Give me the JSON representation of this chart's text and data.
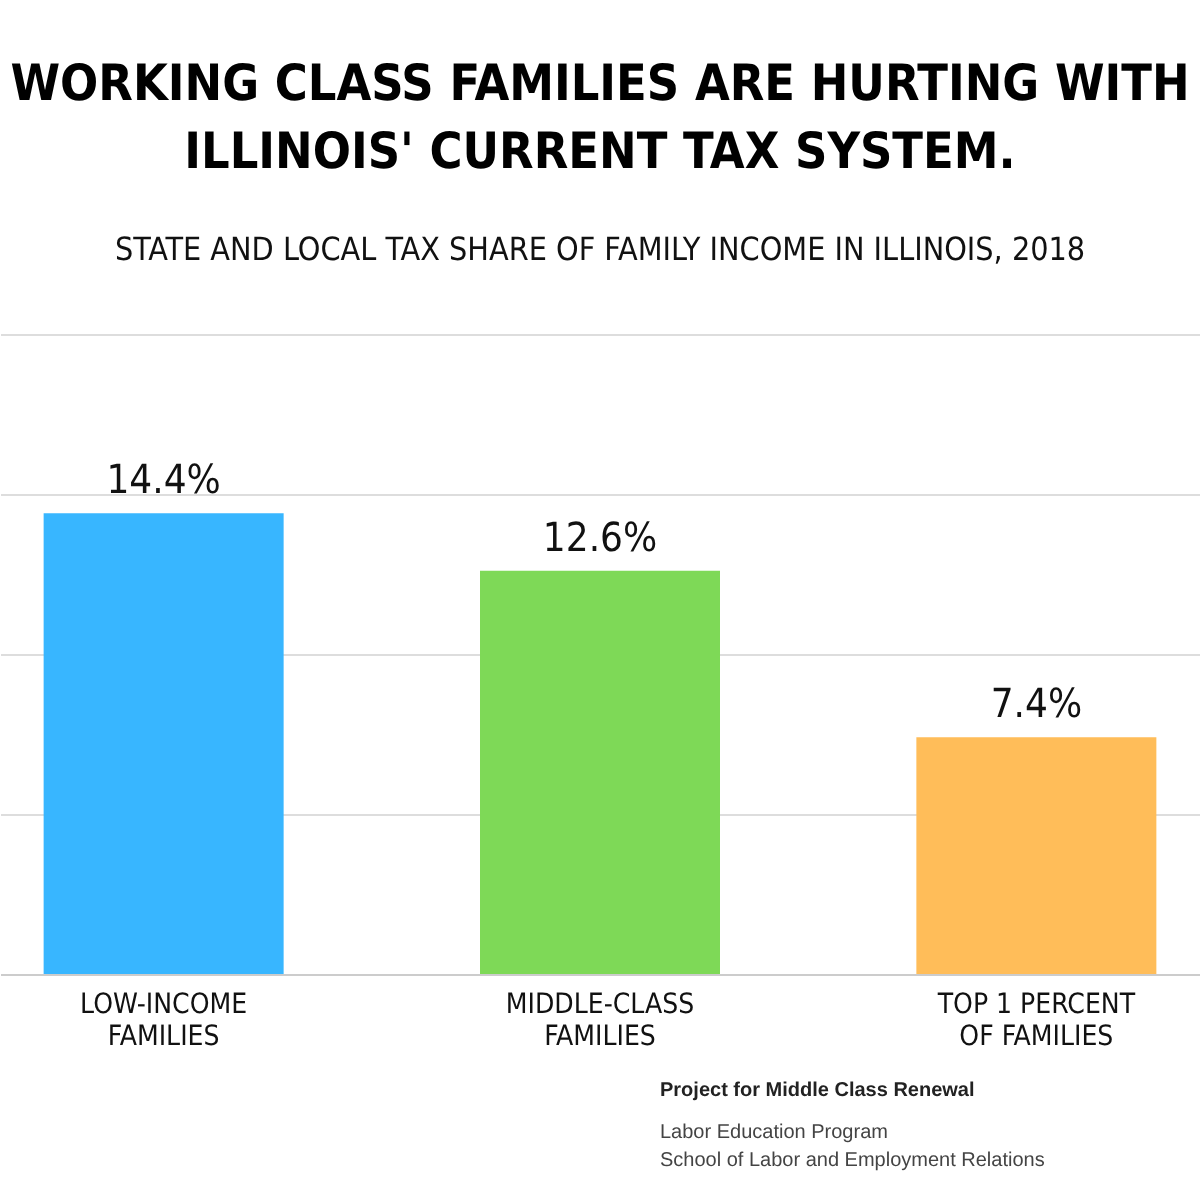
{
  "chart_data": {
    "type": "bar",
    "title": "WORKING CLASS FAMILIES ARE HURTING WITH ILLINOIS' CURRENT TAX SYSTEM.",
    "subtitle": "STATE AND LOCAL TAX SHARE OF FAMILY INCOME IN ILLINOIS, 2018",
    "categories": [
      "LOW-INCOME FAMILIES",
      "MIDDLE-CLASS FAMILIES",
      "TOP 1 PERCENT OF FAMILIES"
    ],
    "values": [
      14.4,
      12.6,
      7.4
    ],
    "colors": [
      "#38b6ff",
      "#7ed957",
      "#ffbd59"
    ],
    "value_labels": [
      "14.4%",
      "12.6%",
      "7.4%"
    ],
    "ylim": [
      0,
      20
    ],
    "yticks": [
      0,
      5,
      10,
      15,
      20
    ],
    "grid": "y",
    "tick_labels": "x",
    "annotations": [
      "Project for Middle Class Renewal",
      "Labor Education Program",
      "School of Labor and Employment Relations"
    ]
  }
}
